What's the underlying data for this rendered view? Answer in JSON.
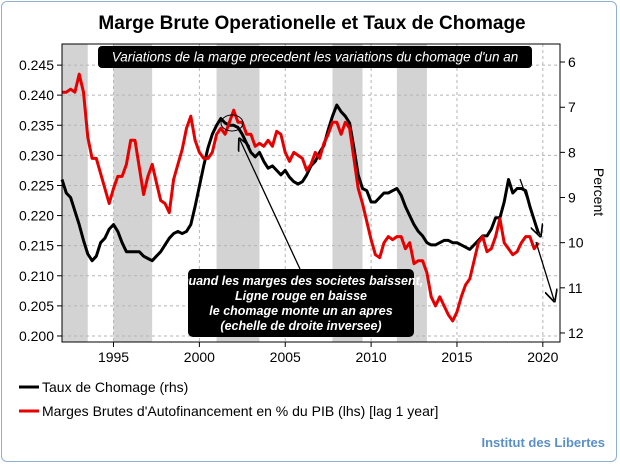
{
  "chart_data": {
    "type": "line",
    "title": "Marge Brute Operationelle et Taux de Chomage",
    "annotation_top": "Variations de la marge precedent les variations du chomage d'un an",
    "annotation_middle": [
      "Quand les marges des societes baissent,",
      "Ligne rouge en baisse",
      "le chomage monte un an apres",
      "(echelle de droite inversee)"
    ],
    "x_ticks": [
      1995,
      2000,
      2005,
      2010,
      2015,
      2020
    ],
    "x_range": [
      1992,
      2021
    ],
    "left_axis": {
      "ticks": [
        "0.200",
        "0.205",
        "0.210",
        "0.215",
        "0.220",
        "0.225",
        "0.230",
        "0.235",
        "0.240",
        "0.245"
      ],
      "range": [
        0.199,
        0.2485
      ]
    },
    "right_axis": {
      "label": "Percent",
      "ticks": [
        "6",
        "7",
        "8",
        "9",
        "10",
        "11",
        "12"
      ],
      "range_inverted": [
        5.6,
        12.2
      ]
    },
    "recessions": [
      [
        1992.0,
        1993.5
      ],
      [
        1995.0,
        1997.25
      ],
      [
        2001.0,
        2003.5
      ],
      [
        2007.75,
        2009.5
      ],
      [
        2011.5,
        2013.25
      ]
    ],
    "series": [
      {
        "name": "Taux de Chomage (rhs)",
        "color": "#000000",
        "axis": "right",
        "points": [
          [
            1992.0,
            8.6
          ],
          [
            1992.25,
            8.9
          ],
          [
            1992.5,
            9.0
          ],
          [
            1992.75,
            9.3
          ],
          [
            1993.0,
            9.6
          ],
          [
            1993.25,
            9.95
          ],
          [
            1993.5,
            10.25
          ],
          [
            1993.75,
            10.4
          ],
          [
            1994.0,
            10.3
          ],
          [
            1994.25,
            10.0
          ],
          [
            1994.5,
            9.9
          ],
          [
            1994.75,
            9.7
          ],
          [
            1995.0,
            9.6
          ],
          [
            1995.25,
            9.75
          ],
          [
            1995.5,
            10.0
          ],
          [
            1995.75,
            10.2
          ],
          [
            1996.0,
            10.2
          ],
          [
            1996.5,
            10.2
          ],
          [
            1996.75,
            10.3
          ],
          [
            1997.0,
            10.35
          ],
          [
            1997.25,
            10.4
          ],
          [
            1997.5,
            10.3
          ],
          [
            1997.75,
            10.2
          ],
          [
            1998.0,
            10.05
          ],
          [
            1998.25,
            9.9
          ],
          [
            1998.5,
            9.8
          ],
          [
            1998.75,
            9.75
          ],
          [
            1999.0,
            9.8
          ],
          [
            1999.25,
            9.75
          ],
          [
            1999.5,
            9.6
          ],
          [
            1999.75,
            9.2
          ],
          [
            2000.0,
            8.75
          ],
          [
            2000.25,
            8.3
          ],
          [
            2000.5,
            7.9
          ],
          [
            2000.75,
            7.6
          ],
          [
            2001.0,
            7.4
          ],
          [
            2001.25,
            7.25
          ],
          [
            2001.5,
            7.35
          ],
          [
            2001.75,
            7.4
          ],
          [
            2002.0,
            7.4
          ],
          [
            2002.25,
            7.45
          ],
          [
            2002.5,
            7.6
          ],
          [
            2002.75,
            7.8
          ],
          [
            2003.0,
            8.0
          ],
          [
            2003.25,
            8.1
          ],
          [
            2003.5,
            8.0
          ],
          [
            2003.75,
            8.2
          ],
          [
            2004.0,
            8.35
          ],
          [
            2004.25,
            8.3
          ],
          [
            2004.5,
            8.4
          ],
          [
            2004.75,
            8.5
          ],
          [
            2005.0,
            8.4
          ],
          [
            2005.25,
            8.55
          ],
          [
            2005.5,
            8.65
          ],
          [
            2005.75,
            8.7
          ],
          [
            2006.0,
            8.65
          ],
          [
            2006.25,
            8.5
          ],
          [
            2006.5,
            8.3
          ],
          [
            2006.75,
            8.2
          ],
          [
            2007.0,
            8.0
          ],
          [
            2007.25,
            7.85
          ],
          [
            2007.5,
            7.5
          ],
          [
            2007.75,
            7.2
          ],
          [
            2008.0,
            6.95
          ],
          [
            2008.25,
            7.1
          ],
          [
            2008.5,
            7.2
          ],
          [
            2008.75,
            7.35
          ],
          [
            2009.0,
            7.9
          ],
          [
            2009.25,
            8.5
          ],
          [
            2009.5,
            8.8
          ],
          [
            2009.75,
            8.85
          ],
          [
            2010.0,
            9.1
          ],
          [
            2010.25,
            9.1
          ],
          [
            2010.5,
            9.0
          ],
          [
            2010.75,
            8.9
          ],
          [
            2011.0,
            8.9
          ],
          [
            2011.25,
            8.85
          ],
          [
            2011.5,
            8.8
          ],
          [
            2011.75,
            8.95
          ],
          [
            2012.0,
            9.2
          ],
          [
            2012.25,
            9.4
          ],
          [
            2012.5,
            9.6
          ],
          [
            2012.75,
            9.75
          ],
          [
            2013.0,
            9.85
          ],
          [
            2013.25,
            10.0
          ],
          [
            2013.5,
            10.05
          ],
          [
            2013.75,
            10.05
          ],
          [
            2014.0,
            10.0
          ],
          [
            2014.25,
            9.95
          ],
          [
            2014.5,
            9.95
          ],
          [
            2014.75,
            10.0
          ],
          [
            2015.0,
            10.0
          ],
          [
            2015.25,
            10.05
          ],
          [
            2015.5,
            10.1
          ],
          [
            2015.75,
            10.15
          ],
          [
            2016.0,
            10.05
          ],
          [
            2016.25,
            9.95
          ],
          [
            2016.5,
            9.85
          ],
          [
            2016.75,
            9.85
          ],
          [
            2017.0,
            9.7
          ],
          [
            2017.25,
            9.45
          ],
          [
            2017.5,
            9.45
          ],
          [
            2017.75,
            9.1
          ],
          [
            2018.0,
            8.6
          ],
          [
            2018.25,
            8.9
          ],
          [
            2018.5,
            8.8
          ],
          [
            2018.75,
            8.8
          ],
          [
            2019.0,
            8.85
          ],
          [
            2019.25,
            9.2
          ],
          [
            2019.5,
            9.5
          ],
          [
            2019.75,
            9.8
          ]
        ]
      },
      {
        "name": "Marges Brutes d'Autofinancement en % du PIB (lhs) [lag 1 year]",
        "color": "#e60000",
        "axis": "left",
        "points": [
          [
            1992.0,
            0.2405
          ],
          [
            1992.25,
            0.2405
          ],
          [
            1992.5,
            0.241
          ],
          [
            1992.75,
            0.2405
          ],
          [
            1993.0,
            0.2435
          ],
          [
            1993.25,
            0.2405
          ],
          [
            1993.5,
            0.233
          ],
          [
            1993.75,
            0.2295
          ],
          [
            1994.0,
            0.2295
          ],
          [
            1994.25,
            0.227
          ],
          [
            1994.5,
            0.2245
          ],
          [
            1994.75,
            0.222
          ],
          [
            1995.0,
            0.2245
          ],
          [
            1995.25,
            0.2265
          ],
          [
            1995.5,
            0.2265
          ],
          [
            1995.75,
            0.2285
          ],
          [
            1996.0,
            0.2325
          ],
          [
            1996.25,
            0.2325
          ],
          [
            1996.5,
            0.228
          ],
          [
            1996.75,
            0.2235
          ],
          [
            1997.0,
            0.2265
          ],
          [
            1997.25,
            0.2285
          ],
          [
            1997.5,
            0.2255
          ],
          [
            1997.75,
            0.2225
          ],
          [
            1998.0,
            0.222
          ],
          [
            1998.25,
            0.2205
          ],
          [
            1998.5,
            0.226
          ],
          [
            1998.75,
            0.2285
          ],
          [
            1999.0,
            0.231
          ],
          [
            1999.25,
            0.2345
          ],
          [
            1999.5,
            0.2365
          ],
          [
            1999.75,
            0.2325
          ],
          [
            2000.0,
            0.2305
          ],
          [
            2000.25,
            0.2295
          ],
          [
            2000.5,
            0.2295
          ],
          [
            2000.75,
            0.2305
          ],
          [
            2001.0,
            0.2335
          ],
          [
            2001.25,
            0.2345
          ],
          [
            2001.5,
            0.2335
          ],
          [
            2001.75,
            0.2355
          ],
          [
            2002.0,
            0.2375
          ],
          [
            2002.25,
            0.2355
          ],
          [
            2002.5,
            0.2355
          ],
          [
            2002.75,
            0.2335
          ],
          [
            2003.0,
            0.2335
          ],
          [
            2003.25,
            0.2315
          ],
          [
            2003.5,
            0.232
          ],
          [
            2003.75,
            0.2315
          ],
          [
            2004.0,
            0.2325
          ],
          [
            2004.25,
            0.2315
          ],
          [
            2004.5,
            0.234
          ],
          [
            2004.75,
            0.2335
          ],
          [
            2005.0,
            0.2305
          ],
          [
            2005.25,
            0.229
          ],
          [
            2005.5,
            0.2305
          ],
          [
            2005.75,
            0.23
          ],
          [
            2006.0,
            0.2295
          ],
          [
            2006.25,
            0.2275
          ],
          [
            2006.5,
            0.2285
          ],
          [
            2006.75,
            0.2305
          ],
          [
            2007.0,
            0.2295
          ],
          [
            2007.25,
            0.232
          ],
          [
            2007.5,
            0.2335
          ],
          [
            2007.75,
            0.2355
          ],
          [
            2008.0,
            0.2355
          ],
          [
            2008.25,
            0.2335
          ],
          [
            2008.5,
            0.2355
          ],
          [
            2008.75,
            0.2345
          ],
          [
            2009.0,
            0.2295
          ],
          [
            2009.25,
            0.2245
          ],
          [
            2009.5,
            0.222
          ],
          [
            2009.75,
            0.219
          ],
          [
            2010.0,
            0.216
          ],
          [
            2010.25,
            0.2135
          ],
          [
            2010.5,
            0.213
          ],
          [
            2010.75,
            0.2155
          ],
          [
            2011.0,
            0.2165
          ],
          [
            2011.25,
            0.216
          ],
          [
            2011.5,
            0.2165
          ],
          [
            2011.75,
            0.2165
          ],
          [
            2012.0,
            0.2145
          ],
          [
            2012.25,
            0.2155
          ],
          [
            2012.5,
            0.212
          ],
          [
            2012.75,
            0.2125
          ],
          [
            2013.0,
            0.2125
          ],
          [
            2013.25,
            0.2105
          ],
          [
            2013.5,
            0.2065
          ],
          [
            2013.75,
            0.205
          ],
          [
            2014.0,
            0.2065
          ],
          [
            2014.25,
            0.205
          ],
          [
            2014.5,
            0.2035
          ],
          [
            2014.75,
            0.2025
          ],
          [
            2015.0,
            0.204
          ],
          [
            2015.25,
            0.2065
          ],
          [
            2015.5,
            0.2085
          ],
          [
            2015.75,
            0.2095
          ],
          [
            2016.0,
            0.2125
          ],
          [
            2016.25,
            0.2155
          ],
          [
            2016.5,
            0.2165
          ],
          [
            2016.75,
            0.214
          ],
          [
            2017.0,
            0.2145
          ],
          [
            2017.25,
            0.2165
          ],
          [
            2017.5,
            0.2195
          ],
          [
            2017.75,
            0.2155
          ],
          [
            2018.0,
            0.2145
          ],
          [
            2018.25,
            0.2135
          ],
          [
            2018.5,
            0.214
          ],
          [
            2018.75,
            0.2155
          ],
          [
            2019.0,
            0.2165
          ],
          [
            2019.25,
            0.2165
          ],
          [
            2019.5,
            0.2145
          ],
          [
            2019.75,
            0.2155
          ]
        ]
      }
    ],
    "grid": true,
    "legend_position": "bottom-left",
    "source": "Institut des Libertes"
  }
}
